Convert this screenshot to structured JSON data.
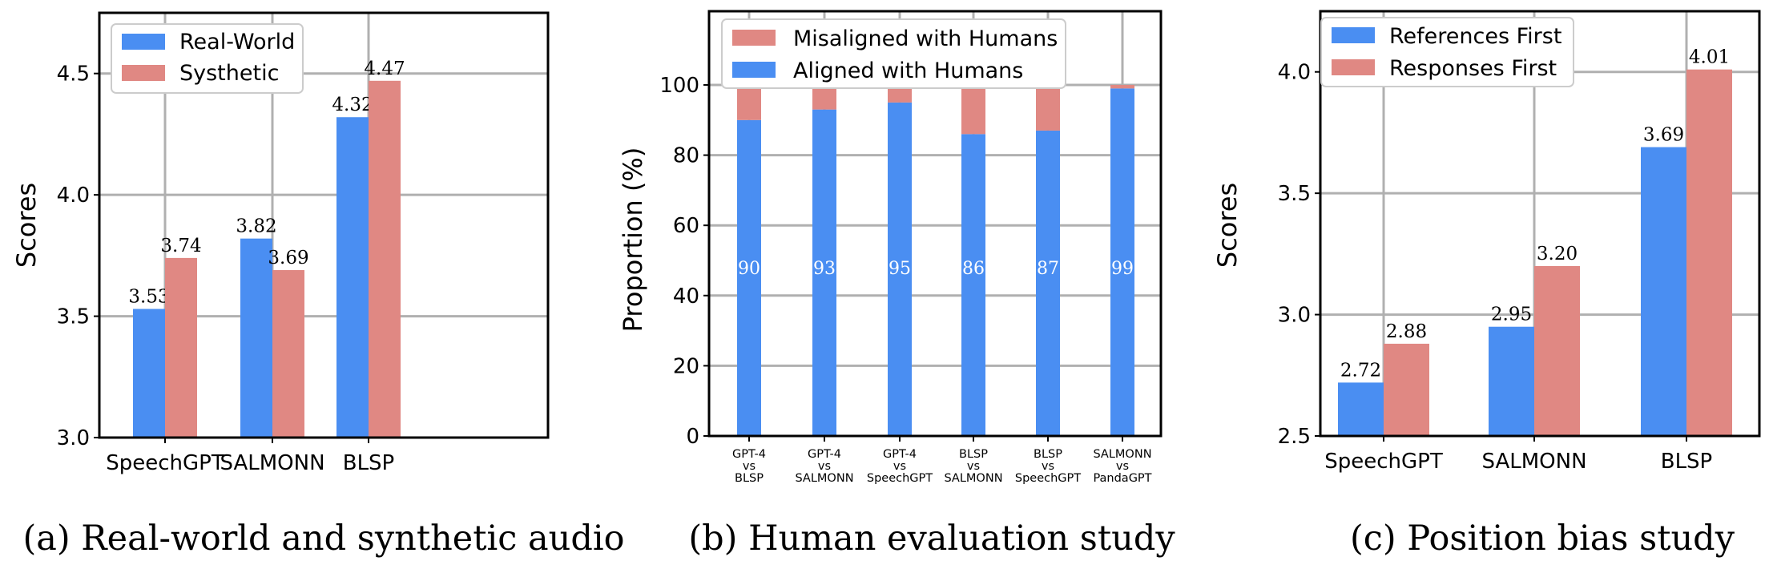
{
  "colors": {
    "blue": "#4a8ef2",
    "red": "#e08883",
    "grid": "#b0b0b0"
  },
  "chart_data": [
    {
      "type": "bar",
      "title": "",
      "caption": "(a) Real-world and synthetic audio",
      "xlabel": "",
      "ylabel": "Scores",
      "ylim": [
        3.0,
        4.75
      ],
      "yticks": [
        3.0,
        3.5,
        4.0,
        4.5
      ],
      "ytick_labels": [
        "3.0",
        "3.5",
        "4.0",
        "4.5"
      ],
      "grid": true,
      "legend_position": "top-left",
      "categories": [
        "SpeechGPT",
        "SALMONN",
        "BLSP"
      ],
      "series": [
        {
          "name": "Real-World",
          "color": "#4a8ef2",
          "values": [
            3.53,
            3.82,
            4.32
          ],
          "labels": [
            "3.53",
            "3.82",
            "4.32"
          ]
        },
        {
          "name": "Systhetic",
          "color": "#e08883",
          "values": [
            3.74,
            3.69,
            4.47
          ],
          "labels": [
            "3.74",
            "3.69",
            "4.47"
          ]
        }
      ]
    },
    {
      "type": "stacked-bar",
      "title": "",
      "caption": "(b) Human evaluation study",
      "xlabel": "",
      "ylabel": "Proportion (%)",
      "ylim": [
        0,
        121
      ],
      "yticks": [
        0,
        20,
        40,
        60,
        80,
        100
      ],
      "ytick_labels": [
        "0",
        "20",
        "40",
        "60",
        "80",
        "100"
      ],
      "grid": true,
      "legend_position": "top-left",
      "categories": [
        [
          "GPT-4",
          "vs",
          "BLSP"
        ],
        [
          "GPT-4",
          "vs",
          "SALMONN"
        ],
        [
          "GPT-4",
          "vs",
          "SpeechGPT"
        ],
        [
          "BLSP",
          "vs",
          "SALMONN"
        ],
        [
          "BLSP",
          "vs",
          "SpeechGPT"
        ],
        [
          "SALMONN",
          "vs",
          "PandaGPT"
        ]
      ],
      "series": [
        {
          "name": "Aligned with Humans",
          "color": "#4a8ef2",
          "values": [
            90,
            93,
            95,
            86,
            87,
            99
          ],
          "labels": [
            "90",
            "93",
            "95",
            "86",
            "87",
            "99"
          ]
        },
        {
          "name": "Misaligned with Humans",
          "color": "#e08883",
          "values": [
            10,
            7,
            5,
            14,
            13,
            1
          ]
        }
      ],
      "legend_order": [
        "Misaligned with Humans",
        "Aligned with Humans"
      ]
    },
    {
      "type": "bar",
      "title": "",
      "caption": "(c) Position bias study",
      "xlabel": "",
      "ylabel": "Scores",
      "ylim": [
        2.5,
        4.25
      ],
      "yticks": [
        2.5,
        3.0,
        3.5,
        4.0
      ],
      "ytick_labels": [
        "2.5",
        "3.0",
        "3.5",
        "4.0"
      ],
      "grid": true,
      "legend_position": "top-left",
      "categories": [
        "SpeechGPT",
        "SALMONN",
        "BLSP"
      ],
      "series": [
        {
          "name": "References First",
          "color": "#4a8ef2",
          "values": [
            2.72,
            2.95,
            3.69
          ],
          "labels": [
            "2.72",
            "2.95",
            "3.69"
          ]
        },
        {
          "name": "Responses First",
          "color": "#e08883",
          "values": [
            2.88,
            3.2,
            4.01
          ],
          "labels": [
            "2.88",
            "3.20",
            "4.01"
          ]
        }
      ]
    }
  ]
}
